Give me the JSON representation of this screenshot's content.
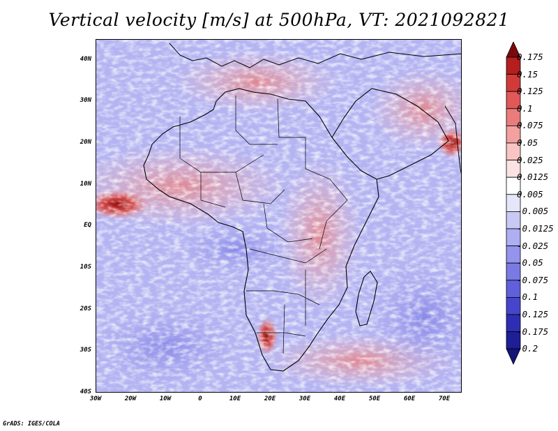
{
  "title": "Vertical velocity [m/s] at 500hPa, VT: 2021092821",
  "credit": "GrADS: IGES/COLA",
  "map": {
    "lat_labels": [
      "40N",
      "30N",
      "20N",
      "10N",
      "EQ",
      "10S",
      "20S",
      "30S",
      "40S"
    ],
    "lon_labels": [
      "30W",
      "20W",
      "10W",
      "0",
      "10E",
      "20E",
      "30E",
      "40E",
      "50E",
      "60E",
      "70E"
    ],
    "lat_range": [
      -40,
      45
    ],
    "lon_range": [
      -30,
      75
    ]
  },
  "colorbar": {
    "labels": [
      "0.175",
      "0.15",
      "0.125",
      "0.1",
      "0.075",
      "0.05",
      "0.025",
      "0.0125",
      "0.005",
      "-0.005",
      "-0.0125",
      "-0.025",
      "-0.05",
      "-0.075",
      "-0.1",
      "-0.125",
      "-0.175",
      "-0.2"
    ],
    "colors": [
      "#7a0a0a",
      "#b41e1e",
      "#d23a3a",
      "#e05858",
      "#ea7c7c",
      "#f2a0a0",
      "#f8c4c4",
      "#fce2e2",
      "#ffffff",
      "#e6e6fa",
      "#c9c9f5",
      "#aeaef2",
      "#9494ec",
      "#7a7ae4",
      "#6060dc",
      "#4646cc",
      "#2e2eb4",
      "#1e1e96",
      "#15157a"
    ]
  }
}
